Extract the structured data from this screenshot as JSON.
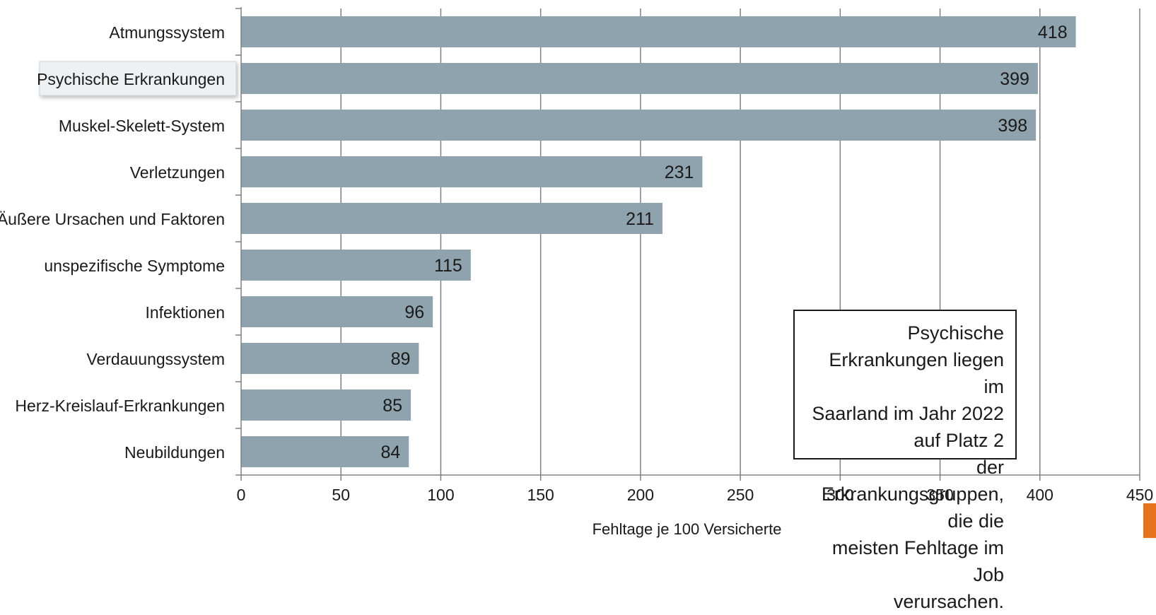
{
  "chart_data": {
    "type": "bar",
    "orientation": "horizontal",
    "categories": [
      "Atmungssystem",
      "Psychische Erkrankungen",
      "Muskel-Skelett-System",
      "Verletzungen",
      "Äußere Ursachen und Faktoren",
      "unspezifische Symptome",
      "Infektionen",
      "Verdauungssystem",
      "Herz-Kreislauf-Erkrankungen",
      "Neubildungen"
    ],
    "values": [
      418,
      399,
      398,
      231,
      211,
      115,
      96,
      89,
      85,
      84
    ],
    "highlight_category": "Psychische Erkrankungen",
    "xlabel": "Fehltage je 100 Versicherte",
    "ylabel": "",
    "xlim": [
      0,
      450
    ],
    "xticks": [
      0,
      50,
      100,
      150,
      200,
      250,
      300,
      350,
      400,
      450
    ],
    "grid": "vertical",
    "bar_color": "#8ea3ae",
    "grid_color": "#808080"
  },
  "annotation": {
    "lines": [
      "Psychische Erkrankungen liegen im",
      "Saarland im Jahr 2022 auf Platz 2",
      "der Erkrankungsgruppen, die die",
      "meisten Fehltage im Job",
      "verursachen."
    ]
  }
}
